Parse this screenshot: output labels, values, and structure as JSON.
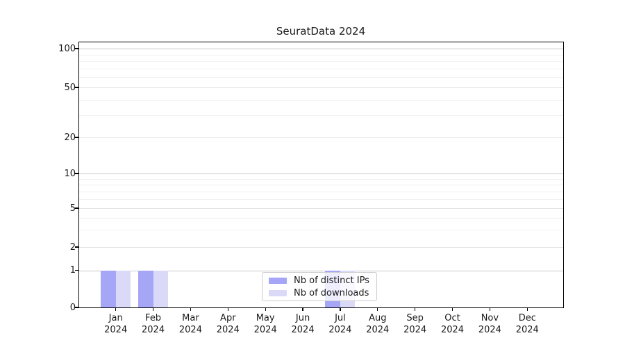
{
  "page": {
    "background_color": "#ffffff"
  },
  "chart_data": {
    "type": "bar",
    "title": "SeuratData 2024",
    "xlabel": "",
    "ylabel": "",
    "yscale": "symlog",
    "ylim": [
      0,
      100
    ],
    "yticks": [
      0,
      1,
      2,
      5,
      10,
      20,
      50,
      100
    ],
    "minor_gridline_values": [
      3,
      4,
      6,
      7,
      8,
      9,
      30,
      40,
      60,
      70,
      80,
      90
    ],
    "grid": true,
    "months": [
      "Jan",
      "Feb",
      "Mar",
      "Apr",
      "May",
      "Jun",
      "Jul",
      "Aug",
      "Sep",
      "Oct",
      "Nov",
      "Dec"
    ],
    "year": "2024",
    "series": [
      {
        "name": "Nb of distinct IPs",
        "color": "#a6a6f7",
        "values": [
          1,
          1,
          0,
          0,
          0,
          0,
          1,
          0,
          0,
          0,
          0,
          0
        ]
      },
      {
        "name": "Nb of downloads",
        "color": "#dadaf8",
        "values": [
          1,
          1,
          0,
          0,
          0,
          0,
          1,
          0,
          0,
          0,
          0,
          0
        ]
      }
    ],
    "legend_position": "lower center",
    "colors": {
      "decade_gridline": "#c8c8c8",
      "labeled_gridline": "#e2e2e2",
      "minor_gridline": "#f2f2f2",
      "spine": "#000000",
      "text": "#1a1a1a"
    }
  }
}
